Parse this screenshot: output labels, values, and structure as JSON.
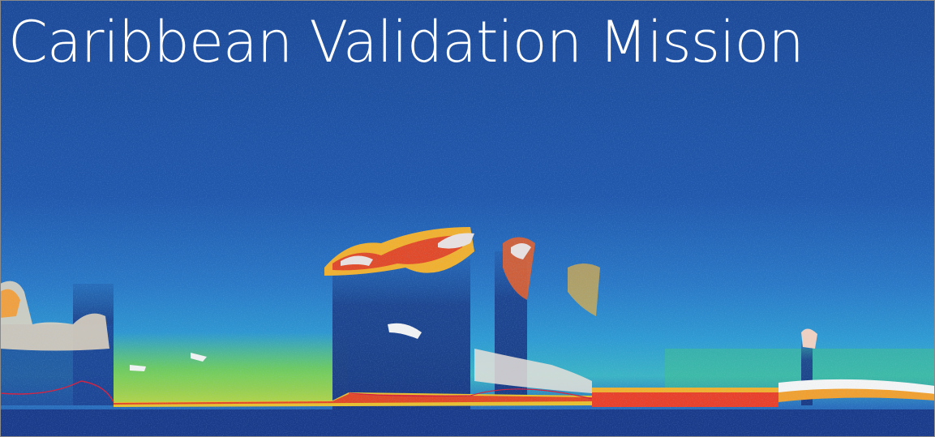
{
  "title": "Caribbean Validation Mission"
}
